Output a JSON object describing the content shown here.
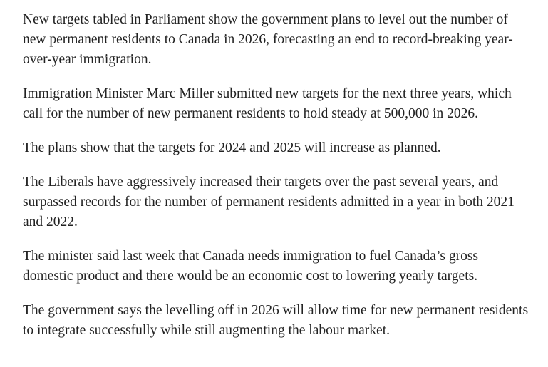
{
  "article": {
    "paragraphs": [
      "New targets tabled in Parliament show the government plans to level out the number of new permanent residents to Canada in 2026, forecasting an end to record-breaking year-over-year immigration.",
      "Immigration Minister Marc Miller submitted new targets for the next three years, which call for the number of new permanent residents to hold steady at 500,000 in 2026.",
      "The plans show that the targets for 2024 and 2025 will increase as planned.",
      "The Liberals have aggressively increased their targets over the past several years, and surpassed records for the number of permanent residents admitted in a year in both 2021 and 2022.",
      "The minister said last week that Canada needs immigration to fuel Canada’s gross domestic product and there would be an economic cost to lowering yearly targets.",
      "The government says the levelling off in 2026 will allow time for new permanent residents to integrate successfully while still augmenting the labour market."
    ]
  }
}
